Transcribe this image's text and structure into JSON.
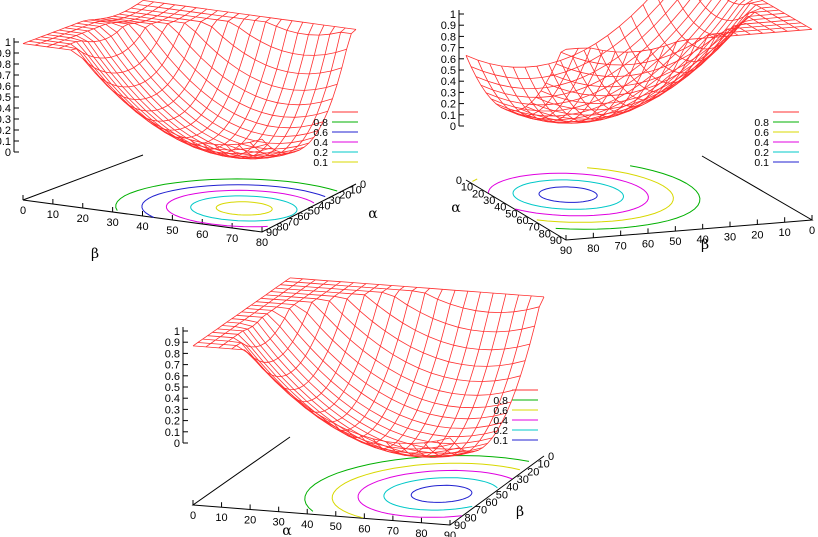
{
  "chart_data": [
    {
      "type": "surface",
      "name_hint": "top-left",
      "axes": {
        "front": "β",
        "side": "α",
        "z": ""
      },
      "front_ticks": [
        "0",
        "10",
        "20",
        "30",
        "40",
        "50",
        "60",
        "70",
        "80"
      ],
      "side_ticks": [
        "0",
        "10",
        "20",
        "30",
        "40",
        "50",
        "60",
        "70",
        "80",
        "90"
      ],
      "z_ticks": [
        "0",
        "0.1",
        "0.2",
        "0.3",
        "0.4",
        "0.5",
        "0.6",
        "0.7",
        "0.8",
        "0.9",
        "1"
      ],
      "zlim": [
        0,
        1
      ],
      "legend": [
        {
          "label": "",
          "color": "#ff3030"
        },
        {
          "label": "0.8",
          "color": "#00b000"
        },
        {
          "label": "0.6",
          "color": "#2020d0"
        },
        {
          "label": "0.4",
          "color": "#e000e0"
        },
        {
          "label": "0.2",
          "color": "#00c8c8"
        },
        {
          "label": "0.1",
          "color": "#d8d800"
        }
      ],
      "surface_color": "#ff3030"
    },
    {
      "type": "surface",
      "name_hint": "top-right",
      "axes": {
        "front": "β",
        "side": "α",
        "z": ""
      },
      "front_ticks": [
        "90",
        "80",
        "70",
        "60",
        "50",
        "40",
        "30",
        "20",
        "10",
        "0"
      ],
      "side_ticks": [
        "0",
        "10",
        "20",
        "30",
        "40",
        "50",
        "60",
        "70",
        "80",
        "90"
      ],
      "z_ticks": [
        "0",
        "0.1",
        "0.2",
        "0.3",
        "0.4",
        "0.5",
        "0.6",
        "0.7",
        "0.8",
        "0.9",
        "1"
      ],
      "zlim": [
        0,
        1
      ],
      "legend": [
        {
          "label": "",
          "color": "#ff3030"
        },
        {
          "label": "0.8",
          "color": "#00b000"
        },
        {
          "label": "0.6",
          "color": "#d8d800"
        },
        {
          "label": "0.4",
          "color": "#e000e0"
        },
        {
          "label": "0.2",
          "color": "#00c8c8"
        },
        {
          "label": "0.1",
          "color": "#2020d0"
        }
      ],
      "surface_color": "#ff3030"
    },
    {
      "type": "surface",
      "name_hint": "bottom",
      "axes": {
        "front": "α",
        "side": "β",
        "z": ""
      },
      "front_ticks": [
        "0",
        "10",
        "20",
        "30",
        "40",
        "50",
        "60",
        "70",
        "80",
        "90"
      ],
      "side_ticks": [
        "0",
        "10",
        "20",
        "30",
        "40",
        "50",
        "60",
        "70",
        "80",
        "90"
      ],
      "z_ticks": [
        "0",
        "0.1",
        "0.2",
        "0.3",
        "0.4",
        "0.5",
        "0.6",
        "0.7",
        "0.8",
        "0.9",
        "1"
      ],
      "zlim": [
        0,
        1
      ],
      "legend": [
        {
          "label": "",
          "color": "#ff3030"
        },
        {
          "label": "0.8",
          "color": "#00b000"
        },
        {
          "label": "0.6",
          "color": "#d8d800"
        },
        {
          "label": "0.4",
          "color": "#e000e0"
        },
        {
          "label": "0.2",
          "color": "#00c8c8"
        },
        {
          "label": "0.1",
          "color": "#2020d0"
        }
      ],
      "surface_color": "#ff3030"
    }
  ]
}
